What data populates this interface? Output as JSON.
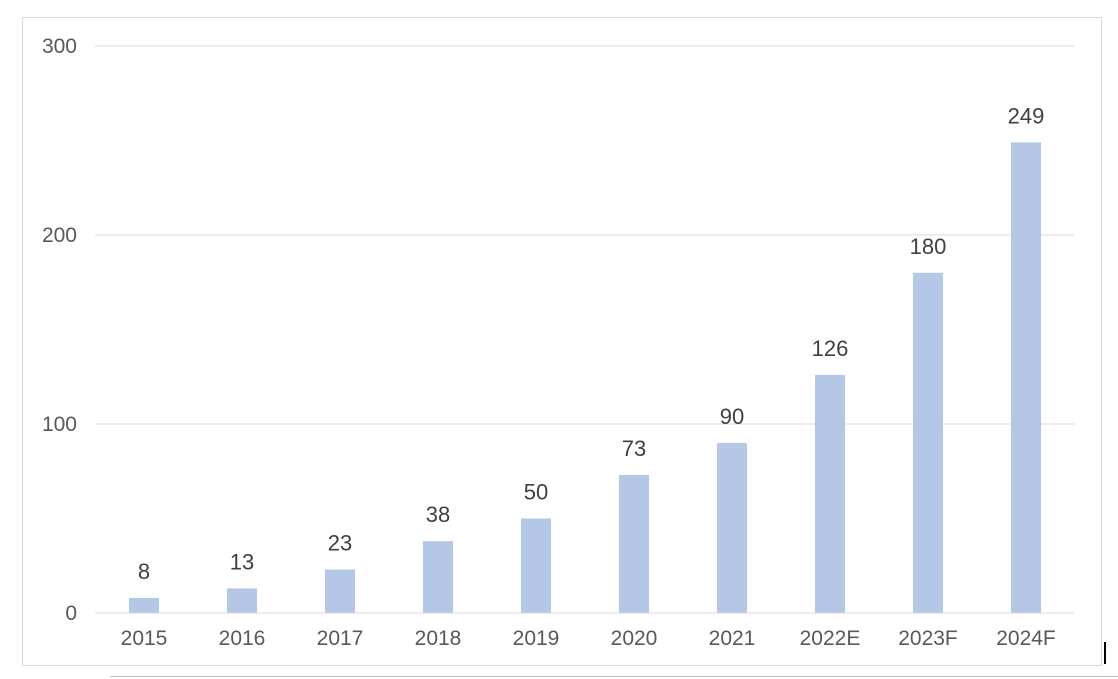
{
  "chart_data": {
    "type": "bar",
    "categories": [
      "2015",
      "2016",
      "2017",
      "2018",
      "2019",
      "2020",
      "2021",
      "2022E",
      "2023F",
      "2024F"
    ],
    "values": [
      8,
      13,
      23,
      38,
      50,
      73,
      90,
      126,
      180,
      249
    ],
    "data_labels": [
      "8",
      "13",
      "23",
      "38",
      "50",
      "73",
      "90",
      "126",
      "180",
      "249"
    ],
    "title": "",
    "xlabel": "",
    "ylabel": "",
    "ylim": [
      0,
      300
    ],
    "yticks": [
      0,
      100,
      200,
      300
    ],
    "ytick_labels": [
      "0",
      "100",
      "200",
      "300"
    ],
    "grid": true,
    "legend": "none",
    "bar_color": "#b4c7e7"
  }
}
